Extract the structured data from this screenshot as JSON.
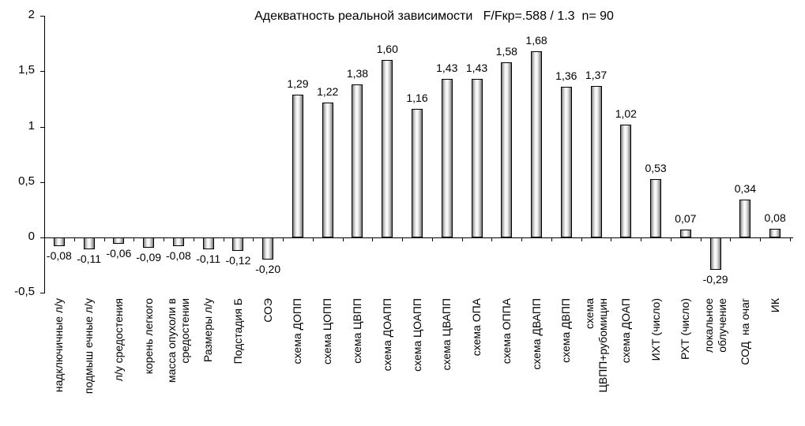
{
  "chart_data": {
    "type": "bar",
    "title": "Адекватность реальной зависимости   F/Fкр=.588 / 1.3  n= 90",
    "xlabel": "",
    "ylabel": "",
    "ylim": [
      -0.5,
      2
    ],
    "yticks": [
      "2",
      "1,5",
      "1",
      "0,5",
      "0",
      "-0,5"
    ],
    "ytick_values": [
      2,
      1.5,
      1,
      0.5,
      0,
      -0.5
    ],
    "grid": false,
    "legend": null,
    "categories": [
      "надключичные л/у",
      "подмыш ечные л/у",
      "л/у средостения",
      "корень легкого",
      "масса опухоли в\nсредостении",
      "Размеры л/у",
      "Подстадия Б",
      "СОЭ",
      "схема ДОПП",
      "схема ЦОПП",
      "схема ЦВПП",
      "схема ДОАПП",
      "схема ЦОАПП",
      "схема ЦВАПП",
      "схема ОПА",
      "схема ОППА",
      "схема ДВАПП",
      "схема ДВПП",
      "схема\nЦВПП+рубомицин",
      "схема ДОАП",
      "ИХТ (число)",
      "РХТ (число)",
      "локальное\nоблучение",
      "СОД  на очаг",
      "ИК"
    ],
    "values": [
      -0.08,
      -0.11,
      -0.06,
      -0.09,
      -0.08,
      -0.11,
      -0.12,
      -0.2,
      1.29,
      1.22,
      1.38,
      1.6,
      1.16,
      1.43,
      1.43,
      1.58,
      1.68,
      1.36,
      1.37,
      1.02,
      0.53,
      0.07,
      -0.29,
      0.34,
      0.08
    ],
    "value_labels": [
      "-0,08",
      "-0,11",
      "-0,06",
      "-0,09",
      "-0,08",
      "-0,11",
      "-0,12",
      "-0,20",
      "1,29",
      "1,22",
      "1,38",
      "1,60",
      "1,16",
      "1,43",
      "1,43",
      "1,58",
      "1,68",
      "1,36",
      "1,37",
      "1,02",
      "0,53",
      "0,07",
      "-0,29",
      "0,34",
      "0,08"
    ]
  }
}
